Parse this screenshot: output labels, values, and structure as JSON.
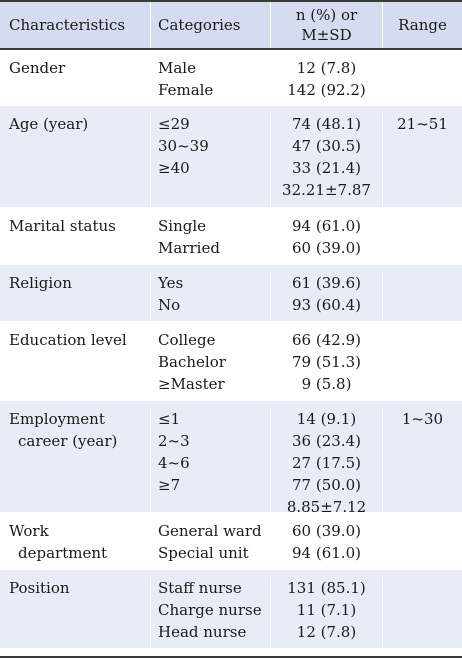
{
  "header": {
    "characteristics": "Characteristics",
    "categories": "Categories",
    "stat_line1": "n (%) or",
    "stat_line2": "M±SD",
    "range": "Range"
  },
  "rows": [
    {
      "char": [
        "Gender"
      ],
      "cats": [
        "Male",
        "Female"
      ],
      "vals": [
        "12 (7.8)",
        "142 (92.2)"
      ],
      "range": ""
    },
    {
      "char": [
        "Age (year)"
      ],
      "cats": [
        "≤29",
        "30~39",
        "≥40",
        ""
      ],
      "vals": [
        "74 (48.1)",
        "47 (30.5)",
        "33 (21.4)",
        "32.21±7.87"
      ],
      "range": "21~51"
    },
    {
      "char": [
        "Marital status"
      ],
      "cats": [
        "Single",
        "Married"
      ],
      "vals": [
        "94 (61.0)",
        "60 (39.0)"
      ],
      "range": ""
    },
    {
      "char": [
        "Religion"
      ],
      "cats": [
        "Yes",
        "No"
      ],
      "vals": [
        "61 (39.6)",
        "93 (60.4)"
      ],
      "range": ""
    },
    {
      "char": [
        "Education level"
      ],
      "cats": [
        "College",
        "Bachelor",
        "≥Master"
      ],
      "vals": [
        "66 (42.9)",
        "79 (51.3)",
        "9 (5.8)"
      ],
      "range": ""
    },
    {
      "char": [
        "Employment",
        "career (year)"
      ],
      "cats": [
        "≤1",
        "2~3",
        "4~6",
        "≥7",
        ""
      ],
      "vals": [
        "14 (9.1)",
        "36 (23.4)",
        "27 (17.5)",
        "77 (50.0)",
        "8.85±7.12"
      ],
      "range": "1~30"
    },
    {
      "char": [
        "Work",
        "department"
      ],
      "cats": [
        "General ward",
        "Special unit"
      ],
      "vals": [
        "60 (39.0)",
        "94 (61.0)"
      ],
      "range": ""
    },
    {
      "char": [
        "Position"
      ],
      "cats": [
        "Staff nurse",
        "Charge nurse",
        "Head nurse"
      ],
      "vals": [
        "131 (85.1)",
        "11 (7.1)",
        "12 (7.8)"
      ],
      "range": ""
    }
  ]
}
